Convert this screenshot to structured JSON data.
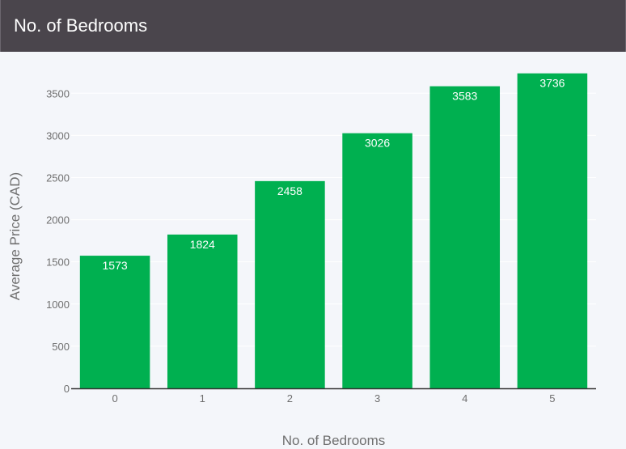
{
  "header": {
    "title": "No. of Bedrooms"
  },
  "colors": {
    "bar": "#00b050",
    "header_bg": "#4a454c",
    "background": "#f4f6fa",
    "grid": "#ffffff",
    "axis": "#333333"
  },
  "chart_data": {
    "type": "bar",
    "title": "",
    "xlabel": "No. of Bedrooms",
    "ylabel": "Average Price (CAD)",
    "categories": [
      "0",
      "1",
      "2",
      "3",
      "4",
      "5"
    ],
    "values": [
      1573,
      1824,
      2458,
      3026,
      3583,
      3736
    ],
    "data_labels": [
      "1573",
      "1824",
      "2458",
      "3026",
      "3583",
      "3736"
    ],
    "ylim": [
      0,
      3800
    ],
    "yticks": [
      0,
      500,
      1000,
      1500,
      2000,
      2500,
      3000,
      3500
    ],
    "ytick_labels": [
      "0",
      "500",
      "1000",
      "1500",
      "2000",
      "2500",
      "3000",
      "3500"
    ],
    "grid": true,
    "legend": "none"
  }
}
